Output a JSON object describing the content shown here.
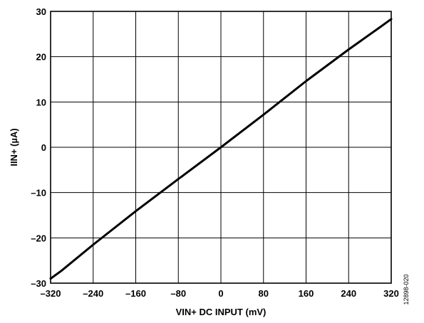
{
  "chart_data": {
    "type": "line",
    "title": "",
    "xlabel": "VIN+ DC INPUT (mV)",
    "ylabel": "IIN+ (µA)",
    "xlim": [
      -320,
      320
    ],
    "ylim": [
      -30,
      30
    ],
    "grid": true,
    "x_ticks": [
      -320,
      -240,
      -160,
      -80,
      0,
      80,
      160,
      240,
      320
    ],
    "x_tick_labels": [
      "–320",
      "–240",
      "–160",
      "–80",
      "0",
      "80",
      "160",
      "240",
      "320"
    ],
    "y_ticks": [
      -30,
      -20,
      -10,
      0,
      10,
      20,
      30
    ],
    "y_tick_labels": [
      "–30",
      "–20",
      "–10",
      "0",
      "10",
      "20",
      "30"
    ],
    "series": [
      {
        "x": [
          -320,
          -300,
          -240,
          -160,
          -80,
          0,
          80,
          160,
          240,
          300,
          320
        ],
        "y": [
          -29.0,
          -27.3,
          -21.5,
          -14.1,
          -7.0,
          0.0,
          7.2,
          14.6,
          21.6,
          26.6,
          28.3
        ]
      }
    ],
    "figure_id": "12898-020"
  }
}
